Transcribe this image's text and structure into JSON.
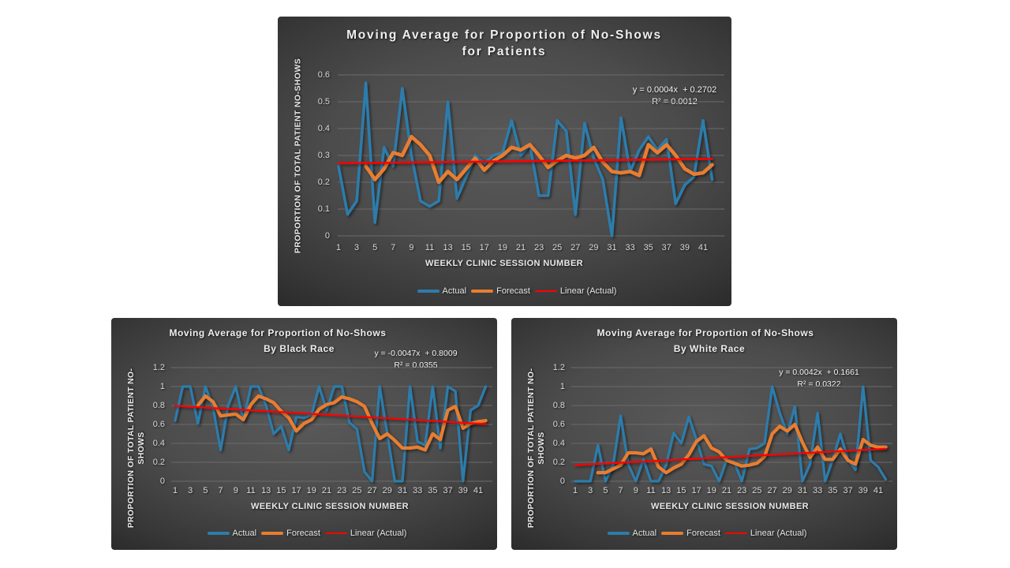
{
  "page": {
    "background": "#ffffff"
  },
  "colors": {
    "actual": "#2d7cab",
    "forecast": "#e87d31",
    "linear": "#ff0000",
    "grid": "#6b6b6b",
    "tick_text": "#d9d9d9",
    "title_text": "#efefef"
  },
  "legend_items": [
    "Actual",
    "Forecast",
    "Linear (Actual)"
  ],
  "chart_data": [
    {
      "type": "line",
      "title_lines": [
        "Moving Average for Proportion of No-Shows",
        "for Patients"
      ],
      "equation": "y = 0.0004x  + 0.2702",
      "r_squared": "R² = 0.0012",
      "xlabel": "WEEKLY CLINIC SESSION NUMBER",
      "ylabel_lines": [
        "PROPORTION OF TOTAL PATIENT NO-SHOWS"
      ],
      "ylim": [
        0,
        0.6
      ],
      "yticks": [
        "0",
        "0.1",
        "0.2",
        "0.3",
        "0.4",
        "0.5",
        "0.6"
      ],
      "xticks": [
        1,
        3,
        5,
        7,
        9,
        11,
        13,
        15,
        17,
        19,
        21,
        23,
        25,
        27,
        29,
        31,
        33,
        35,
        37,
        39,
        41
      ],
      "x_start": 1,
      "series": [
        {
          "name": "Actual",
          "start_x": 1,
          "values": [
            0.26,
            0.08,
            0.13,
            0.57,
            0.05,
            0.33,
            0.26,
            0.55,
            0.3,
            0.13,
            0.11,
            0.13,
            0.5,
            0.14,
            0.22,
            0.3,
            0.27,
            0.3,
            0.31,
            0.43,
            0.3,
            0.34,
            0.15,
            0.15,
            0.43,
            0.39,
            0.08,
            0.42,
            0.29,
            0.21,
            0.0,
            0.44,
            0.24,
            0.32,
            0.37,
            0.32,
            0.36,
            0.12,
            0.19,
            0.22,
            0.43,
            0.21
          ]
        },
        {
          "name": "Forecast",
          "start_x": 4,
          "values": [
            0.26,
            0.21,
            0.25,
            0.31,
            0.3,
            0.37,
            0.34,
            0.3,
            0.2,
            0.24,
            0.21,
            0.25,
            0.29,
            0.245,
            0.28,
            0.3,
            0.33,
            0.32,
            0.34,
            0.3,
            0.255,
            0.28,
            0.3,
            0.29,
            0.3,
            0.33,
            0.275,
            0.24,
            0.235,
            0.24,
            0.225,
            0.34,
            0.31,
            0.34,
            0.3,
            0.25,
            0.23,
            0.235,
            0.265
          ]
        },
        {
          "name": "Linear (Actual)",
          "trend": {
            "slope": 0.0004,
            "intercept": 0.2702
          }
        }
      ]
    },
    {
      "type": "line",
      "title_lines": [
        "Moving Average for Proportion of No-Shows",
        "By Black Race"
      ],
      "equation": "y = -0.0047x  + 0.8009",
      "r_squared": "R² = 0.0355",
      "xlabel": "WEEKLY CLINIC SESSION NUMBER",
      "ylabel_lines": [
        "PROPORTION OF TOTAL PATIENT NO-",
        "SHOWS"
      ],
      "ylim": [
        0,
        1.2
      ],
      "yticks": [
        "0",
        "0.2",
        "0.4",
        "0.6",
        "0.8",
        "1",
        "1.2"
      ],
      "xticks": [
        1,
        3,
        5,
        7,
        9,
        11,
        13,
        15,
        17,
        19,
        21,
        23,
        25,
        27,
        29,
        31,
        33,
        35,
        37,
        39,
        41
      ],
      "x_start": 1,
      "series": [
        {
          "name": "Actual",
          "start_x": 1,
          "values": [
            0.64,
            1.0,
            1.0,
            0.61,
            1.0,
            0.78,
            0.33,
            0.8,
            1.0,
            0.64,
            1.0,
            1.0,
            0.8,
            0.5,
            0.58,
            0.33,
            0.68,
            0.67,
            0.7,
            1.0,
            0.75,
            1.0,
            1.0,
            0.62,
            0.55,
            0.1,
            0.0,
            1.0,
            0.5,
            0.0,
            0.0,
            1.0,
            0.42,
            0.38,
            1.0,
            0.35,
            1.0,
            0.95,
            0.0,
            0.75,
            0.8,
            1.0
          ]
        },
        {
          "name": "Forecast",
          "start_x": 4,
          "values": [
            0.8,
            0.9,
            0.84,
            0.69,
            0.7,
            0.71,
            0.65,
            0.81,
            0.9,
            0.87,
            0.83,
            0.74,
            0.67,
            0.53,
            0.61,
            0.65,
            0.76,
            0.81,
            0.83,
            0.89,
            0.87,
            0.84,
            0.79,
            0.61,
            0.45,
            0.5,
            0.43,
            0.35,
            0.35,
            0.36,
            0.33,
            0.5,
            0.44,
            0.75,
            0.79,
            0.56,
            0.61,
            0.63,
            0.64
          ]
        },
        {
          "name": "Linear (Actual)",
          "trend": {
            "slope": -0.0047,
            "intercept": 0.8009
          }
        }
      ]
    },
    {
      "type": "line",
      "title_lines": [
        "Moving Average for Proportion of No-Shows",
        "By White Race"
      ],
      "equation": "y = 0.0042x  + 0.1661",
      "r_squared": "R² = 0.0322",
      "xlabel": "WEEKLY CLINIC SESSION NUMBER",
      "ylabel_lines": [
        "PROPORTION OF TOTAL PATIENT NO-",
        "SHOWS"
      ],
      "ylim": [
        0,
        1.2
      ],
      "yticks": [
        "0",
        "0.2",
        "0.4",
        "0.6",
        "0.8",
        "1",
        "1.2"
      ],
      "xticks": [
        1,
        3,
        5,
        7,
        9,
        11,
        13,
        15,
        17,
        19,
        21,
        23,
        25,
        27,
        29,
        31,
        33,
        35,
        37,
        39,
        41
      ],
      "x_start": 1,
      "series": [
        {
          "name": "Actual",
          "start_x": 1,
          "values": [
            0.0,
            0.0,
            0.0,
            0.38,
            0.0,
            0.17,
            0.69,
            0.18,
            0.0,
            0.23,
            0.0,
            0.0,
            0.17,
            0.51,
            0.4,
            0.68,
            0.44,
            0.18,
            0.16,
            0.0,
            0.23,
            0.2,
            0.0,
            0.34,
            0.35,
            0.4,
            1.0,
            0.72,
            0.5,
            0.79,
            0.0,
            0.18,
            0.72,
            0.0,
            0.23,
            0.5,
            0.23,
            0.12,
            1.0,
            0.22,
            0.15,
            0.02
          ]
        },
        {
          "name": "Forecast",
          "start_x": 4,
          "values": [
            0.09,
            0.09,
            0.13,
            0.17,
            0.3,
            0.3,
            0.29,
            0.34,
            0.15,
            0.09,
            0.14,
            0.18,
            0.28,
            0.42,
            0.48,
            0.35,
            0.31,
            0.22,
            0.19,
            0.16,
            0.17,
            0.19,
            0.26,
            0.5,
            0.58,
            0.53,
            0.6,
            0.41,
            0.25,
            0.36,
            0.23,
            0.23,
            0.34,
            0.22,
            0.18,
            0.44,
            0.38,
            0.36,
            0.36
          ]
        },
        {
          "name": "Linear (Actual)",
          "trend": {
            "slope": 0.0042,
            "intercept": 0.1661
          }
        }
      ]
    }
  ]
}
